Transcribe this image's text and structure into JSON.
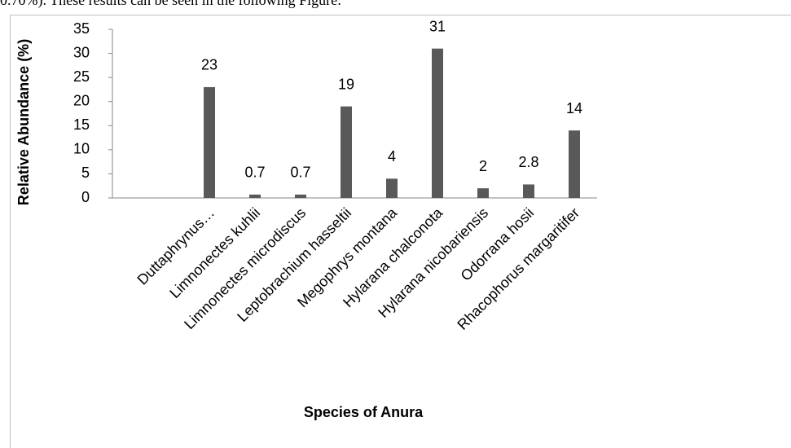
{
  "intro_text": "0.70%). These results can be seen in the following Figure:",
  "chart_data": {
    "type": "bar",
    "x_label": "Species of Anura",
    "y_label": "Relative Abundance (%)",
    "categories": [
      "Duttaphrynus…",
      "Limnonectes kuhlii",
      "Limnonectes microdiscus",
      "Leptobrachium hasseltii",
      "Megophrys montana",
      "Hylarana chalconota",
      "Hylarana nicobariensis",
      "Odorrana hosii",
      "Rhacophorus margaritifer"
    ],
    "values": [
      23,
      0.7,
      0.7,
      19,
      4,
      31,
      2,
      2.8,
      14
    ],
    "color": "#595959",
    "ylim": [
      0,
      35
    ],
    "yticks": [
      0,
      5,
      10,
      15,
      20,
      25,
      30,
      35
    ],
    "grid": false
  }
}
